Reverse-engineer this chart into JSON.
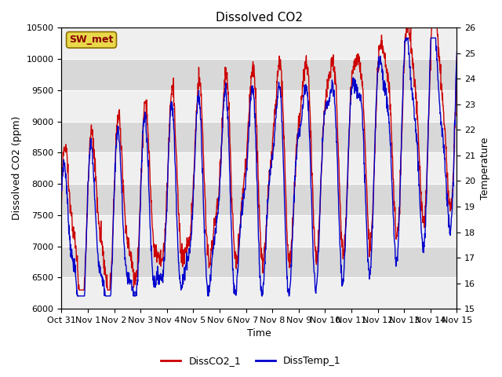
{
  "title": "Dissolved CO2",
  "xlabel": "Time",
  "ylabel_left": "Dissolved CO2 (ppm)",
  "ylabel_right": "Temperature",
  "ylim_left": [
    6000,
    10500
  ],
  "ylim_right": [
    15.0,
    26.0
  ],
  "label_box": "SW_met",
  "legend_co2": "DissCO2_1",
  "legend_temp": "DissTemp_1",
  "co2_color": "#cc0000",
  "temp_color": "#0000cc",
  "bg_color": "#ffffff",
  "plot_bg_color": "#d8d8d8",
  "band_color": "#efefef",
  "xtick_labels": [
    "Oct 31",
    "Nov 1",
    "Nov 2",
    "Nov 3",
    "Nov 4",
    "Nov 5",
    "Nov 6",
    "Nov 7",
    "Nov 8",
    "Nov 9",
    "Nov 10",
    "Nov 11",
    "Nov 12",
    "Nov 13",
    "Nov 14",
    "Nov 15"
  ],
  "yticks_left": [
    6000,
    6500,
    7000,
    7500,
    8000,
    8500,
    9000,
    9500,
    10000,
    10500
  ],
  "yticks_right": [
    15.0,
    16.0,
    17.0,
    18.0,
    19.0,
    20.0,
    21.0,
    22.0,
    23.0,
    24.0,
    25.0,
    26.0
  ],
  "title_fontsize": 11,
  "axis_fontsize": 9,
  "tick_fontsize": 8,
  "label_fontsize": 9
}
